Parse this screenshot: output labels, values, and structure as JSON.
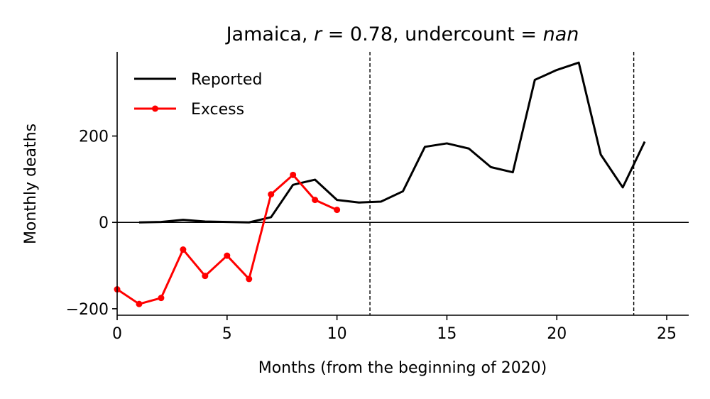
{
  "chart_data": {
    "type": "line",
    "title": {
      "prefix": "Jamaica, ",
      "r_symbol": "r",
      "r_part": " = 0.78, undercount = ",
      "undercount_value": "nan"
    },
    "xlabel": "Months (from the beginning of 2020)",
    "ylabel": "Monthly deaths",
    "xlim": [
      0,
      26
    ],
    "ylim": [
      -215,
      395
    ],
    "xticks": [
      0,
      5,
      10,
      15,
      20,
      25
    ],
    "yticks": [
      -200,
      0,
      200
    ],
    "ytick_labels": [
      "−200",
      "0",
      "200"
    ],
    "vlines": [
      11.5,
      23.5
    ],
    "hline": 0,
    "grid": false,
    "legend_position": "upper-left",
    "series": [
      {
        "name": "Reported",
        "color": "#000000",
        "marker": false,
        "x": [
          1,
          2,
          3,
          4,
          5,
          6,
          7,
          8,
          9,
          10,
          11,
          12,
          13,
          14,
          15,
          16,
          17,
          18,
          19,
          20,
          21,
          22,
          23,
          24
        ],
        "y": [
          0,
          1,
          6,
          2,
          1,
          0,
          12,
          87,
          99,
          52,
          46,
          48,
          72,
          175,
          183,
          171,
          128,
          116,
          330,
          353,
          370,
          157,
          81,
          187
        ]
      },
      {
        "name": "Excess",
        "color": "#ff0000",
        "marker": true,
        "x": [
          0,
          1,
          2,
          3,
          4,
          5,
          6,
          7,
          8,
          9,
          10
        ],
        "y": [
          -155,
          -189,
          -175,
          -63,
          -124,
          -77,
          -131,
          65,
          110,
          52,
          29
        ]
      }
    ]
  }
}
